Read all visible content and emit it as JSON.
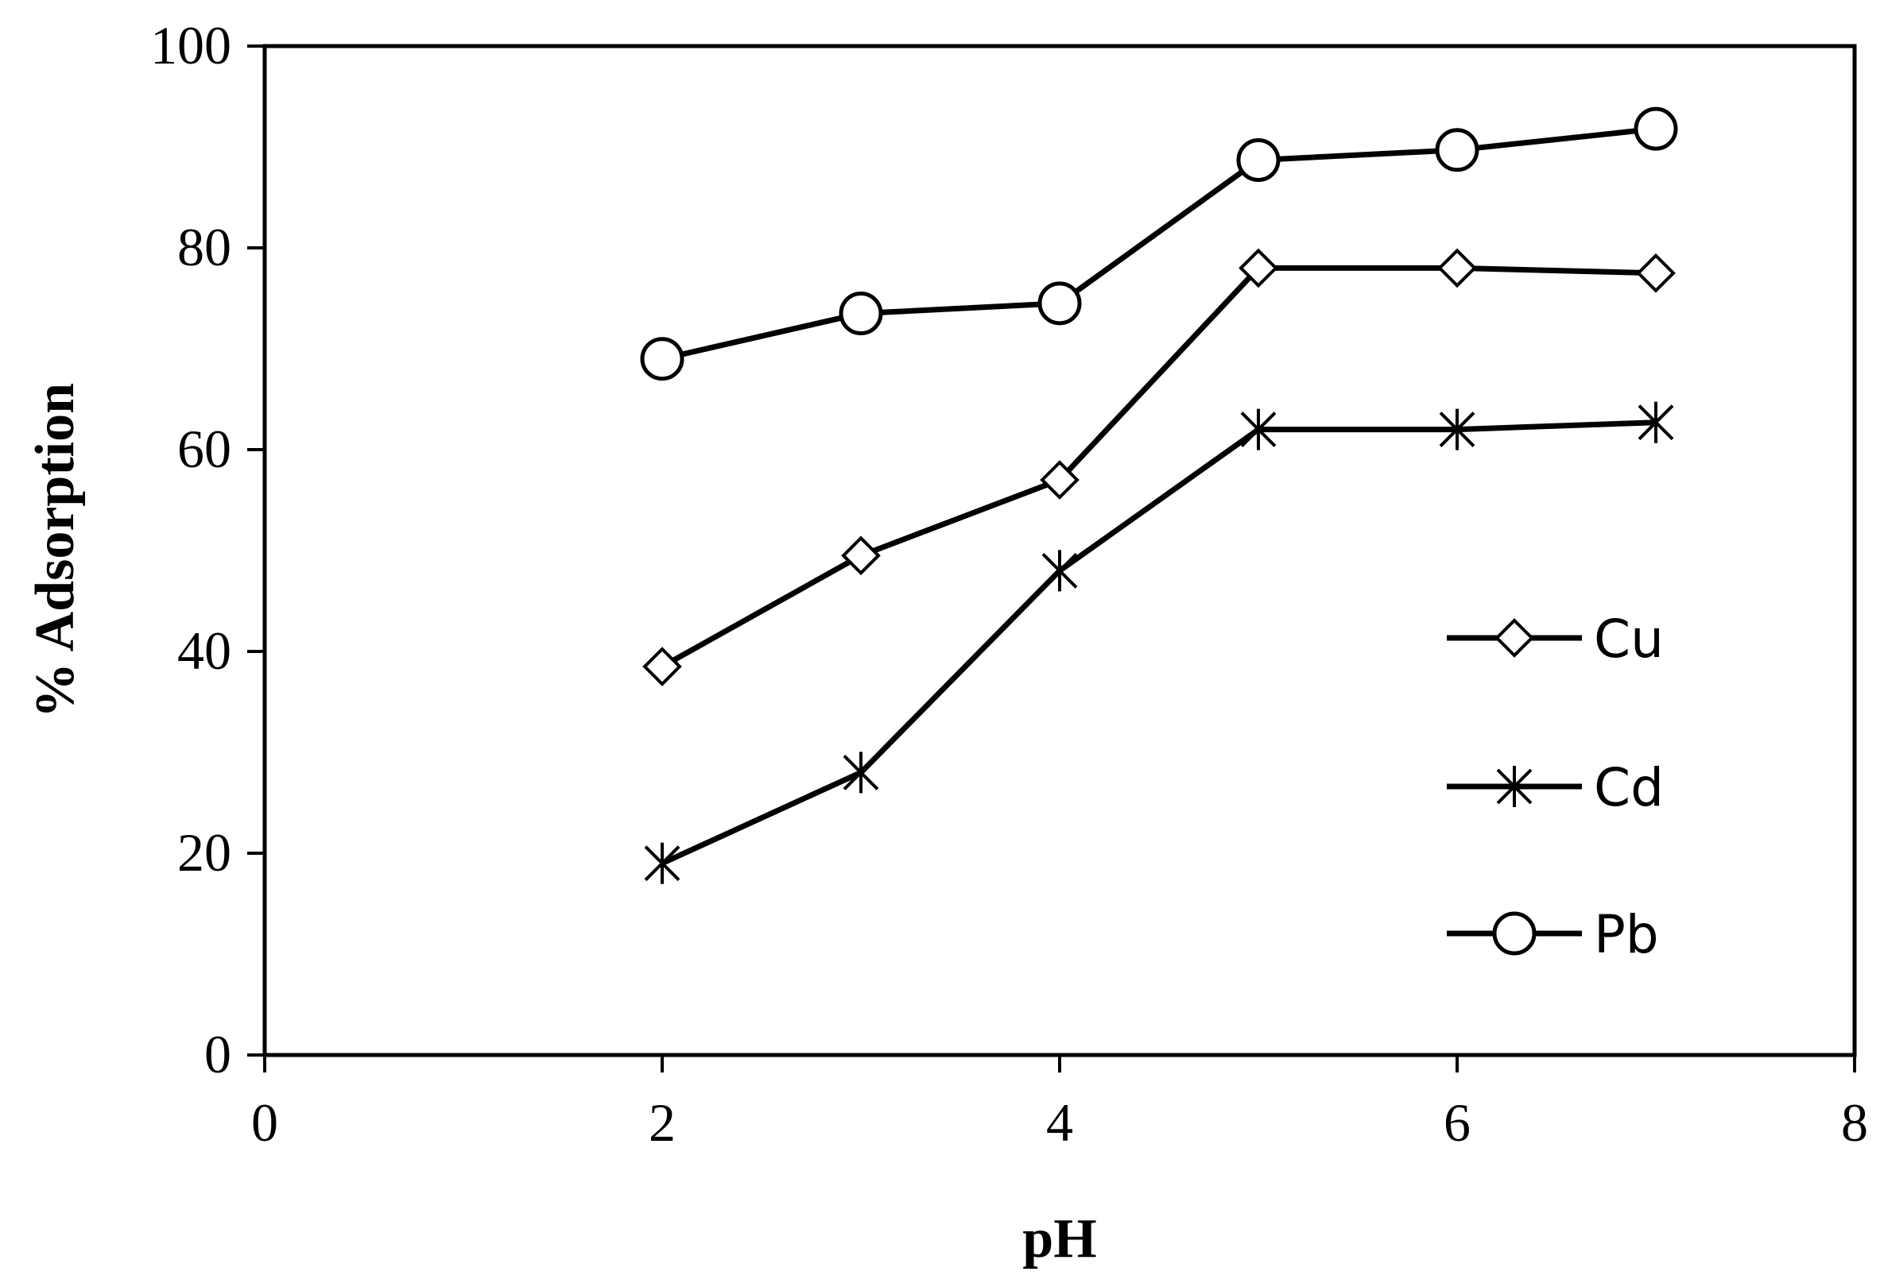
{
  "chart_data": {
    "type": "line",
    "title": "",
    "xlabel": "pH",
    "ylabel": "% Adsorption",
    "xlim": [
      0,
      8
    ],
    "ylim": [
      0,
      100
    ],
    "xticks": [
      0,
      2,
      4,
      6,
      8
    ],
    "yticks": [
      0,
      20,
      40,
      60,
      80,
      100
    ],
    "grid": false,
    "legend_position": "right",
    "x": [
      2,
      3,
      4,
      5,
      6,
      7
    ],
    "series": [
      {
        "name": "Cu",
        "marker": "diamond",
        "values": [
          38.5,
          49.5,
          57,
          78,
          78,
          77.5
        ]
      },
      {
        "name": "Cd",
        "marker": "asterisk",
        "values": [
          19,
          28,
          48,
          62,
          62,
          62.7
        ]
      },
      {
        "name": "Pb",
        "marker": "circle",
        "values": [
          69,
          73.5,
          74.5,
          88.7,
          89.7,
          91.8
        ]
      }
    ],
    "colors": {
      "line": "#000000",
      "marker_fill": "#ffffff",
      "background": "#ffffff"
    }
  }
}
